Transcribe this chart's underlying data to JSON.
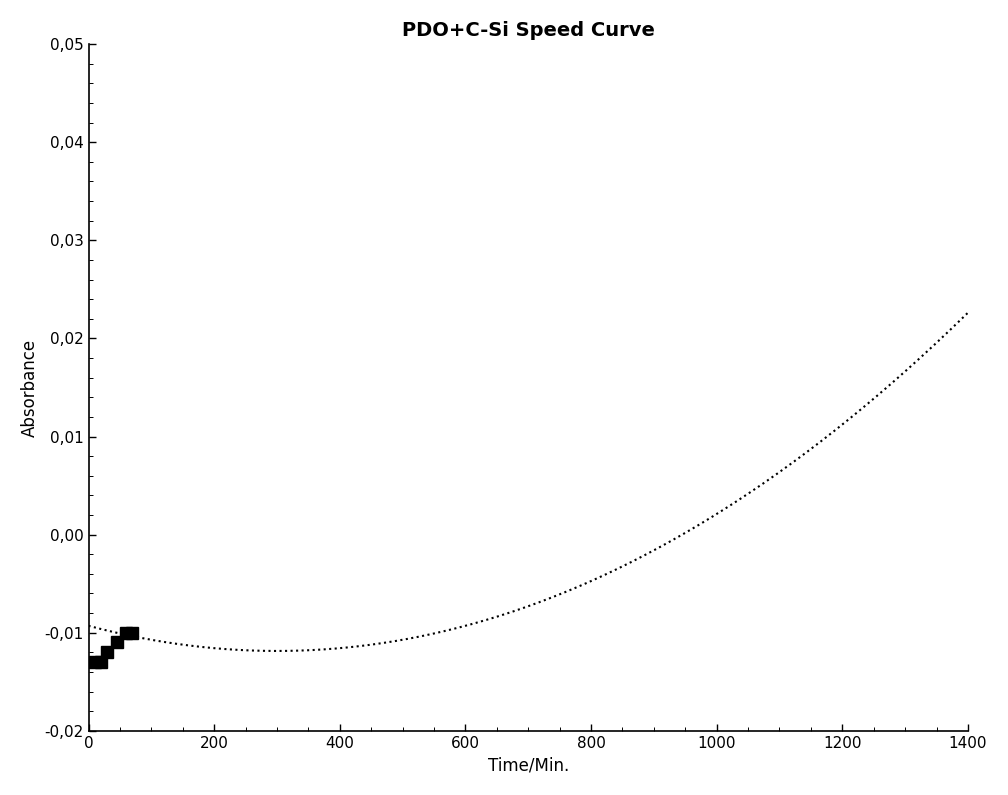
{
  "title": "PDO+C-Si Speed Curve",
  "xlabel": "Time/Min.",
  "ylabel": "Absorbance",
  "xlim": [
    0,
    1400
  ],
  "ylim": [
    -0.02,
    0.05
  ],
  "yticks": [
    -0.02,
    -0.01,
    0.0,
    0.01,
    0.02,
    0.03,
    0.04,
    0.05
  ],
  "xticks": [
    0,
    200,
    400,
    600,
    800,
    1000,
    1200,
    1400
  ],
  "data_points_x": [
    10,
    20,
    30,
    45,
    60,
    70
  ],
  "data_points_y": [
    -0.013,
    -0.013,
    -0.012,
    -0.011,
    -0.01,
    -0.01
  ],
  "curve_color": "#000000",
  "point_color": "#000000",
  "background_color": "#ffffff",
  "title_fontsize": 14,
  "axis_label_fontsize": 12,
  "tick_fontsize": 11,
  "curve_a": 2.85e-08,
  "curve_b": -1.71e-05,
  "curve_c": -0.0093
}
